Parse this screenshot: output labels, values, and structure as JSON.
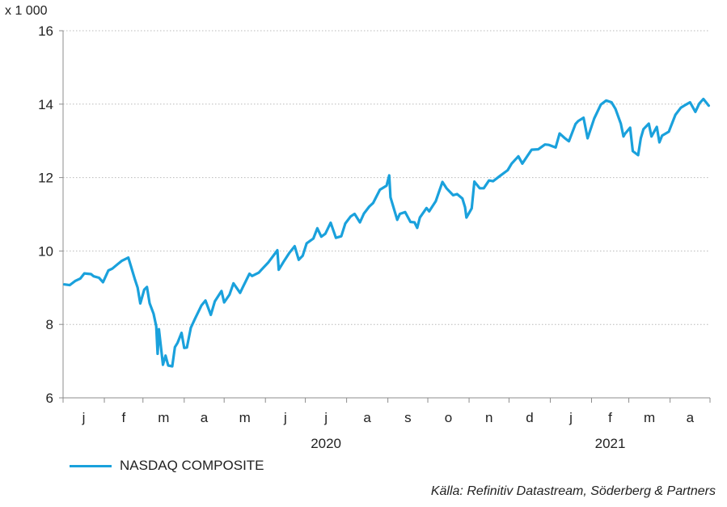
{
  "chart_data": {
    "type": "line",
    "unit_label": "x 1 000",
    "ylim": [
      6,
      16
    ],
    "yticks": [
      6,
      8,
      10,
      12,
      14,
      16
    ],
    "month_labels": [
      "j",
      "f",
      "m",
      "a",
      "m",
      "j",
      "j",
      "a",
      "s",
      "o",
      "n",
      "d",
      "j",
      "f",
      "m",
      "a"
    ],
    "year_labels": [
      {
        "label": "2020",
        "month_index": 6
      },
      {
        "label": "2021",
        "month_index": 13
      }
    ],
    "grid": "horizontal dotted",
    "legend_position": "bottom-left",
    "series": [
      {
        "name": "NASDAQ COMPOSITE",
        "color": "#1aa1dc",
        "points": [
          [
            "2020-01-02",
            9.09
          ],
          [
            "2020-01-06",
            9.07
          ],
          [
            "2020-01-10",
            9.18
          ],
          [
            "2020-01-14",
            9.25
          ],
          [
            "2020-01-17",
            9.39
          ],
          [
            "2020-01-22",
            9.37
          ],
          [
            "2020-01-24",
            9.31
          ],
          [
            "2020-01-28",
            9.27
          ],
          [
            "2020-01-31",
            9.15
          ],
          [
            "2020-02-04",
            9.47
          ],
          [
            "2020-02-07",
            9.52
          ],
          [
            "2020-02-11",
            9.64
          ],
          [
            "2020-02-14",
            9.73
          ],
          [
            "2020-02-19",
            9.82
          ],
          [
            "2020-02-21",
            9.58
          ],
          [
            "2020-02-24",
            9.22
          ],
          [
            "2020-02-26",
            9.0
          ],
          [
            "2020-02-28",
            8.57
          ],
          [
            "2020-03-02",
            8.95
          ],
          [
            "2020-03-04",
            9.02
          ],
          [
            "2020-03-06",
            8.58
          ],
          [
            "2020-03-09",
            8.29
          ],
          [
            "2020-03-11",
            7.95
          ],
          [
            "2020-03-12",
            7.2
          ],
          [
            "2020-03-13",
            7.87
          ],
          [
            "2020-03-16",
            6.9
          ],
          [
            "2020-03-18",
            7.15
          ],
          [
            "2020-03-20",
            6.88
          ],
          [
            "2020-03-23",
            6.86
          ],
          [
            "2020-03-25",
            7.38
          ],
          [
            "2020-03-27",
            7.5
          ],
          [
            "2020-03-30",
            7.77
          ],
          [
            "2020-04-01",
            7.36
          ],
          [
            "2020-04-03",
            7.37
          ],
          [
            "2020-04-06",
            7.91
          ],
          [
            "2020-04-09",
            8.15
          ],
          [
            "2020-04-14",
            8.52
          ],
          [
            "2020-04-17",
            8.65
          ],
          [
            "2020-04-21",
            8.26
          ],
          [
            "2020-04-24",
            8.63
          ],
          [
            "2020-04-29",
            8.91
          ],
          [
            "2020-05-01",
            8.6
          ],
          [
            "2020-05-05",
            8.81
          ],
          [
            "2020-05-08",
            9.12
          ],
          [
            "2020-05-13",
            8.86
          ],
          [
            "2020-05-15",
            9.01
          ],
          [
            "2020-05-20",
            9.38
          ],
          [
            "2020-05-22",
            9.32
          ],
          [
            "2020-05-27",
            9.41
          ],
          [
            "2020-05-29",
            9.49
          ],
          [
            "2020-06-03",
            9.68
          ],
          [
            "2020-06-08",
            9.92
          ],
          [
            "2020-06-10",
            10.02
          ],
          [
            "2020-06-11",
            9.49
          ],
          [
            "2020-06-15",
            9.73
          ],
          [
            "2020-06-19",
            9.95
          ],
          [
            "2020-06-23",
            10.13
          ],
          [
            "2020-06-26",
            9.76
          ],
          [
            "2020-06-29",
            9.87
          ],
          [
            "2020-07-02",
            10.21
          ],
          [
            "2020-07-07",
            10.34
          ],
          [
            "2020-07-10",
            10.62
          ],
          [
            "2020-07-13",
            10.39
          ],
          [
            "2020-07-16",
            10.47
          ],
          [
            "2020-07-20",
            10.77
          ],
          [
            "2020-07-24",
            10.36
          ],
          [
            "2020-07-28",
            10.4
          ],
          [
            "2020-07-31",
            10.75
          ],
          [
            "2020-08-04",
            10.94
          ],
          [
            "2020-08-07",
            11.01
          ],
          [
            "2020-08-11",
            10.78
          ],
          [
            "2020-08-14",
            11.02
          ],
          [
            "2020-08-18",
            11.21
          ],
          [
            "2020-08-21",
            11.31
          ],
          [
            "2020-08-26",
            11.67
          ],
          [
            "2020-08-31",
            11.78
          ],
          [
            "2020-09-02",
            12.06
          ],
          [
            "2020-09-03",
            11.46
          ],
          [
            "2020-09-08",
            10.85
          ],
          [
            "2020-09-10",
            11.01
          ],
          [
            "2020-09-14",
            11.06
          ],
          [
            "2020-09-18",
            10.79
          ],
          [
            "2020-09-21",
            10.78
          ],
          [
            "2020-09-23",
            10.63
          ],
          [
            "2020-09-25",
            10.91
          ],
          [
            "2020-09-30",
            11.17
          ],
          [
            "2020-10-02",
            11.08
          ],
          [
            "2020-10-07",
            11.36
          ],
          [
            "2020-10-12",
            11.88
          ],
          [
            "2020-10-15",
            11.71
          ],
          [
            "2020-10-20",
            11.52
          ],
          [
            "2020-10-23",
            11.55
          ],
          [
            "2020-10-27",
            11.43
          ],
          [
            "2020-10-29",
            11.19
          ],
          [
            "2020-10-30",
            10.91
          ],
          [
            "2020-11-03",
            11.16
          ],
          [
            "2020-11-05",
            11.89
          ],
          [
            "2020-11-09",
            11.71
          ],
          [
            "2020-11-12",
            11.71
          ],
          [
            "2020-11-16",
            11.92
          ],
          [
            "2020-11-19",
            11.9
          ],
          [
            "2020-11-24",
            12.04
          ],
          [
            "2020-11-30",
            12.2
          ],
          [
            "2020-12-03",
            12.38
          ],
          [
            "2020-12-08",
            12.58
          ],
          [
            "2020-12-11",
            12.38
          ],
          [
            "2020-12-15",
            12.6
          ],
          [
            "2020-12-18",
            12.76
          ],
          [
            "2020-12-23",
            12.77
          ],
          [
            "2020-12-28",
            12.9
          ],
          [
            "2020-12-31",
            12.89
          ],
          [
            "2021-01-05",
            12.82
          ],
          [
            "2021-01-08",
            13.2
          ],
          [
            "2021-01-12",
            13.07
          ],
          [
            "2021-01-15",
            12.99
          ],
          [
            "2021-01-20",
            13.46
          ],
          [
            "2021-01-22",
            13.54
          ],
          [
            "2021-01-26",
            13.63
          ],
          [
            "2021-01-29",
            13.07
          ],
          [
            "2021-02-03",
            13.61
          ],
          [
            "2021-02-08",
            13.99
          ],
          [
            "2021-02-12",
            14.1
          ],
          [
            "2021-02-16",
            14.05
          ],
          [
            "2021-02-19",
            13.87
          ],
          [
            "2021-02-23",
            13.47
          ],
          [
            "2021-02-25",
            13.12
          ],
          [
            "2021-02-26",
            13.19
          ],
          [
            "2021-03-02",
            13.36
          ],
          [
            "2021-03-04",
            12.72
          ],
          [
            "2021-03-08",
            12.61
          ],
          [
            "2021-03-10",
            13.07
          ],
          [
            "2021-03-12",
            13.32
          ],
          [
            "2021-03-16",
            13.47
          ],
          [
            "2021-03-18",
            13.12
          ],
          [
            "2021-03-22",
            13.38
          ],
          [
            "2021-03-24",
            12.96
          ],
          [
            "2021-03-26",
            13.14
          ],
          [
            "2021-03-31",
            13.25
          ],
          [
            "2021-04-05",
            13.71
          ],
          [
            "2021-04-09",
            13.9
          ],
          [
            "2021-04-13",
            13.99
          ],
          [
            "2021-04-16",
            14.05
          ],
          [
            "2021-04-20",
            13.79
          ],
          [
            "2021-04-23",
            14.02
          ],
          [
            "2021-04-26",
            14.14
          ],
          [
            "2021-04-28",
            14.05
          ],
          [
            "2021-04-30",
            13.96
          ]
        ]
      }
    ]
  },
  "legend": {
    "label": "NASDAQ COMPOSITE",
    "color": "#1aa1dc"
  },
  "source": "Källa: Refinitiv Datastream, Söderberg & Partners"
}
